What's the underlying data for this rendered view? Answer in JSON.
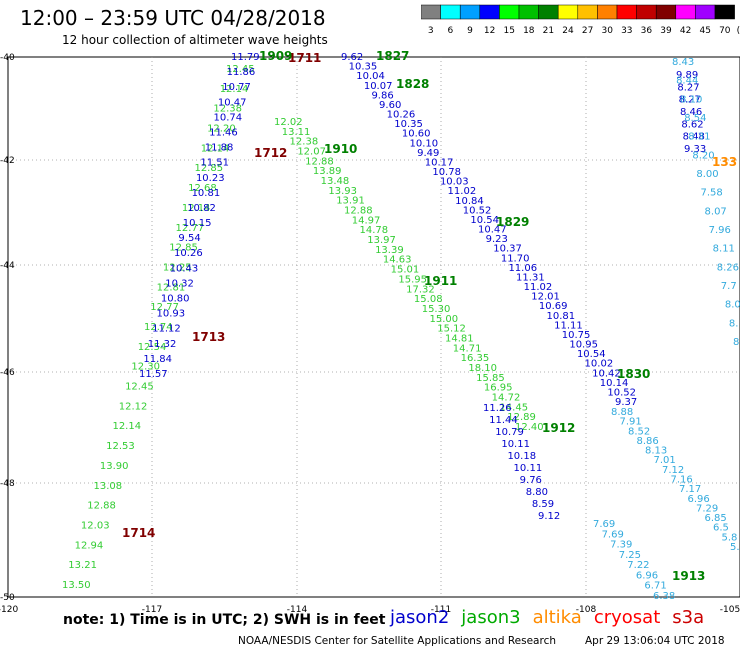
{
  "header": {
    "title": "12:00 – 23:59 UTC 04/28/2018",
    "subtitle": "12 hour collection of altimeter wave heights"
  },
  "legend": {
    "unit": "(ft)",
    "bins": [
      {
        "label": "3",
        "color": "#808080"
      },
      {
        "label": "6",
        "color": "#00ffff"
      },
      {
        "label": "9",
        "color": "#00a0ff"
      },
      {
        "label": "12",
        "color": "#0000ff"
      },
      {
        "label": "15",
        "color": "#00ff00"
      },
      {
        "label": "18",
        "color": "#00c000"
      },
      {
        "label": "21",
        "color": "#008000"
      },
      {
        "label": "24",
        "color": "#ffff00"
      },
      {
        "label": "27",
        "color": "#ffc000"
      },
      {
        "label": "30",
        "color": "#ff8000"
      },
      {
        "label": "33",
        "color": "#ff0000"
      },
      {
        "label": "36",
        "color": "#c00000"
      },
      {
        "label": "39",
        "color": "#800000"
      },
      {
        "label": "42",
        "color": "#ff00ff"
      },
      {
        "label": "45",
        "color": "#a000ff"
      },
      {
        "label": "70",
        "color": "#000000"
      }
    ]
  },
  "axes": {
    "x_ticks": [
      "-120",
      "-117",
      "-114",
      "-111",
      "-108",
      "-105"
    ],
    "y_ticks": [
      "-40",
      "-42",
      "-44",
      "-46",
      "-48",
      "-50"
    ]
  },
  "colors": {
    "jason2": "#0000cc",
    "jason3": "#33cc33",
    "jason3_time": "#008000",
    "altika": "#ff8c00",
    "cryosat": "#ff0000",
    "s3a": "#cc0000",
    "cryosat_label": "#800000",
    "light": "#33aadd",
    "grid": "#999999"
  },
  "times": [
    {
      "t": "1711",
      "c": "cryosat_label"
    },
    {
      "t": "1712",
      "c": "cryosat_label"
    },
    {
      "t": "1713",
      "c": "cryosat_label"
    },
    {
      "t": "1714",
      "c": "cryosat_label"
    },
    {
      "t": "1909",
      "c": "jason3_time"
    },
    {
      "t": "1910",
      "c": "jason3_time"
    },
    {
      "t": "1911",
      "c": "jason3_time"
    },
    {
      "t": "1912",
      "c": "jason3_time"
    },
    {
      "t": "1913",
      "c": "jason3_time"
    },
    {
      "t": "1827",
      "c": "jason3_time"
    },
    {
      "t": "1828",
      "c": "jason3_time"
    },
    {
      "t": "1829",
      "c": "jason3_time"
    },
    {
      "t": "1830",
      "c": "jason3_time"
    },
    {
      "t": "133",
      "c": "altika"
    }
  ],
  "tracks": {
    "t1_green": [
      "12.45",
      "12.14",
      "12.38",
      "12.20",
      "12.14",
      "12.85",
      "12.68",
      "12.14",
      "12.77",
      "12.85",
      "12.25",
      "12.81",
      "12.77",
      "12.74",
      "12.54",
      "12.30",
      "12.45",
      "12.12",
      "12.14",
      "12.53",
      "13.90",
      "13.08",
      "12.88",
      "12.03",
      "12.94",
      "13.21",
      "13.50"
    ],
    "t1_blue": [
      "11.79",
      "11.86",
      "10.77",
      "10.47",
      "10.74",
      "11.46",
      "11.88",
      "11.51",
      "10.23",
      "10.81",
      "10.82",
      "10.15",
      "9.54",
      "10.26",
      "10.43",
      "10.32",
      "10.80",
      "10.93",
      "11.12",
      "11.32",
      "11.84",
      "11.57"
    ],
    "t2_green": [
      "12.02",
      "13.11",
      "12.38",
      "12.07",
      "12.88",
      "13.89",
      "13.48",
      "13.93",
      "13.91",
      "12.88",
      "14.97",
      "14.78",
      "13.97",
      "13.39",
      "14.63",
      "15.01",
      "15.95",
      "17.32",
      "15.08",
      "15.30",
      "15.00",
      "15.12",
      "14.81",
      "14.71",
      "16.35",
      "18.10",
      "15.85",
      "16.95",
      "14.72",
      "14.45",
      "12.89",
      "12.40"
    ],
    "t2_blue": [
      "11.26",
      "11.44",
      "10.79",
      "10.11",
      "10.18",
      "10.11",
      "9.76",
      "8.80",
      "8.59",
      "9.12"
    ],
    "t3_blue": [
      "9.62",
      "10.35",
      "10.04",
      "10.07",
      "9.86",
      "9.60",
      "10.26",
      "10.35",
      "10.60",
      "10.10",
      "9.49",
      "10.17",
      "10.78",
      "10.03",
      "11.02",
      "10.84",
      "10.52",
      "10.54",
      "10.47",
      "9.23",
      "10.37",
      "11.70",
      "11.06",
      "11.31",
      "11.02",
      "12.01",
      "10.69",
      "10.81",
      "11.11",
      "10.75",
      "10.95",
      "10.54",
      "10.02",
      "10.42",
      "10.14",
      "10.52",
      "9.37"
    ],
    "t3_light": [
      "8.88",
      "7.91",
      "8.52",
      "8.86",
      "8.13",
      "7.01",
      "7.12",
      "7.16",
      "7.17",
      "6.96",
      "7.29",
      "6.85",
      "6.5",
      "5.8",
      "5.8"
    ],
    "t3_light2": [
      "7.69",
      "7.69",
      "7.39",
      "7.25",
      "7.22",
      "6.96",
      "6.71",
      "6.38"
    ],
    "t4_blue": [
      "9.89",
      "8.27",
      "8.27",
      "8.46",
      "8.62",
      "8.48",
      "9.33"
    ],
    "t4_light": [
      "8.43",
      "8.44",
      "8.10",
      "8.54",
      "8.31",
      "8.20",
      "8.00",
      "7.58",
      "8.07",
      "7.96",
      "8.11",
      "8.26",
      "7.7",
      "8.0",
      "8.",
      "8"
    ]
  },
  "note": "note: 1) Time is in UTC; 2) SWH is in feet",
  "satellites": [
    {
      "name": "jason2",
      "color": "#0000cc"
    },
    {
      "name": "jason3",
      "color": "#00aa00"
    },
    {
      "name": "altika",
      "color": "#ff8c00"
    },
    {
      "name": "cryosat",
      "color": "#ff0000"
    },
    {
      "name": "s3a",
      "color": "#cc0000"
    }
  ],
  "credit": "NOAA/NESDIS Center for Satellite Applications and Research",
  "timestamp": "Apr 29 13:06:04 UTC 2018"
}
